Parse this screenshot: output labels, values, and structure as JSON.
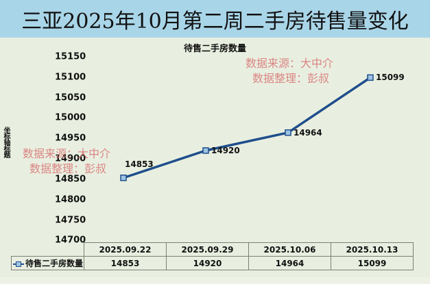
{
  "page_title": "三亚2025年10月第二周二手房待售量变化",
  "colors": {
    "title_bar": "#a9d5e8",
    "background": "#e9efe0",
    "line": "#1f4e8c",
    "marker_fill": "#9fc3e3",
    "watermark": "#d97a7a"
  },
  "watermarks": [
    {
      "line1": "数据来源：大中介",
      "line2": "数据整理：彭叔"
    },
    {
      "line1": "数据来源：大中介",
      "line2": "数据整理：彭叔"
    }
  ],
  "chart_data": {
    "type": "line",
    "title": "待售二手房数量",
    "xlabel": "",
    "ylabel": "坐标轴标题",
    "categories": [
      "2025.09.22",
      "2025.09.29",
      "2025.10.06",
      "2025.10.13"
    ],
    "series": [
      {
        "name": "待售二手房数量",
        "values": [
          14853,
          14920,
          14964,
          15099
        ],
        "marker": "square"
      }
    ],
    "ylim": [
      14700,
      15150
    ],
    "yticks": [
      "15150",
      "15100",
      "15050",
      "15000",
      "14950",
      "14900",
      "14850",
      "14800",
      "14750",
      "14700"
    ],
    "data_labels": [
      "14853",
      "14920",
      "14964",
      "15099"
    ],
    "grid": false,
    "legend_position": "data-table",
    "data_table": {
      "header": [
        "2025.09.22",
        "2025.09.29",
        "2025.10.06",
        "2025.10.13"
      ],
      "row_label": "待售二手房数量",
      "row_values": [
        "14853",
        "14920",
        "14964",
        "15099"
      ]
    }
  }
}
